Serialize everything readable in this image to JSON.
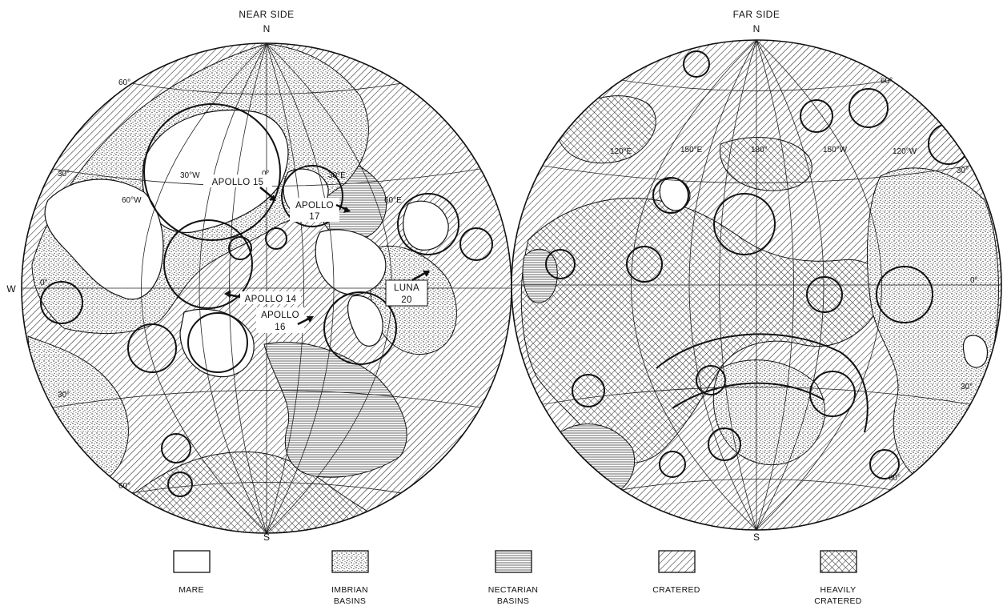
{
  "near_side": {
    "title": "NEAR SIDE",
    "north": "N",
    "south": "S",
    "west": "W",
    "longitudes": [
      "60°W",
      "30°W",
      "0°",
      "30°E",
      "60°E"
    ],
    "latitudes": [
      "60°",
      "30°",
      "0°",
      "30°",
      "60°"
    ],
    "sites": [
      {
        "id": "apollo-15",
        "lines": [
          "APOLLO 15"
        ]
      },
      {
        "id": "apollo-17",
        "lines": [
          "APOLLO",
          "17"
        ]
      },
      {
        "id": "apollo-14",
        "lines": [
          "APOLLO 14"
        ]
      },
      {
        "id": "apollo-16",
        "lines": [
          "APOLLO",
          "16"
        ]
      },
      {
        "id": "luna-20",
        "lines": [
          "LUNA",
          "20"
        ]
      }
    ]
  },
  "far_side": {
    "title": "FAR SIDE",
    "north": "N",
    "south": "S",
    "longitudes": [
      "120°E",
      "150°E",
      "180°",
      "150°W",
      "120°W"
    ],
    "latitudes": [
      "60°",
      "30°",
      "0°",
      "30°",
      "60°"
    ]
  },
  "legend": [
    {
      "id": "mare",
      "lines": [
        "MARE"
      ],
      "pattern": "none"
    },
    {
      "id": "imbrian-basins",
      "lines": [
        "IMBRIAN",
        "BASINS"
      ],
      "pattern": "stipple"
    },
    {
      "id": "nectarian-basins",
      "lines": [
        "NECTARIAN",
        "BASINS"
      ],
      "pattern": "horizontal-lines"
    },
    {
      "id": "cratered",
      "lines": [
        "CRATERED"
      ],
      "pattern": "diagonal-hatch"
    },
    {
      "id": "heavily-cratered",
      "lines": [
        "HEAVILY",
        "CRATERED"
      ],
      "pattern": "cross-hatch"
    }
  ]
}
